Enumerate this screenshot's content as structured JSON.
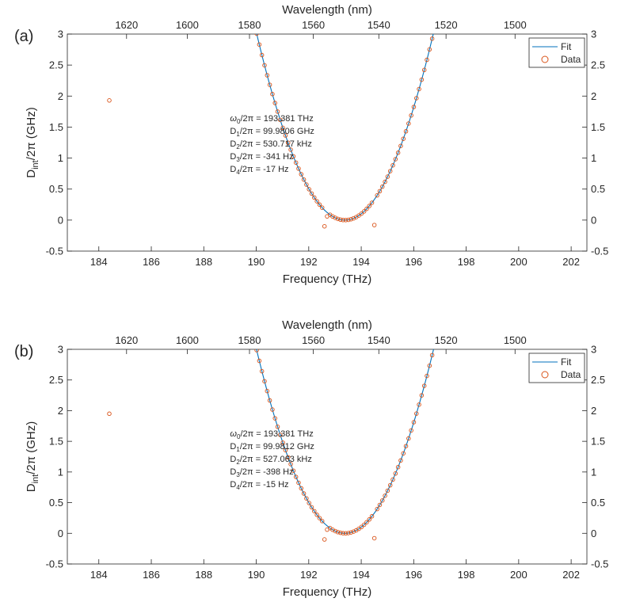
{
  "chart_data": [
    {
      "panel_label": "(a)",
      "type": "scatter",
      "xlabel": "Frequency (THz)",
      "ylabel_parts": {
        "base": "D",
        "sub": "int",
        "tail": "/2π (GHz)"
      },
      "top_xlabel": "Wavelength (nm)",
      "xlim": [
        182.8,
        202.6
      ],
      "ylim": [
        -0.5,
        3
      ],
      "x_ticks": [
        184,
        186,
        188,
        190,
        192,
        194,
        196,
        198,
        200,
        202
      ],
      "y_ticks": [
        -0.5,
        0,
        0.5,
        1,
        1.5,
        2,
        2.5,
        3
      ],
      "top_ticks": [
        1620,
        1600,
        1580,
        1560,
        1540,
        1520,
        1500
      ],
      "legend": {
        "position": "top-right",
        "entries": [
          {
            "label": "Fit",
            "marker": "line",
            "color": "#0072BD"
          },
          {
            "label": "Data",
            "marker": "circle",
            "color": "#D95319"
          }
        ]
      },
      "fit": {
        "name": "Fit",
        "center": 193.381,
        "coeffs": [
          0.530717,
          -0.000341,
          -1.7e-05
        ]
      },
      "data": {
        "name": "Data",
        "x_start": 182.93,
        "x_end": 202.45,
        "x_step": 0.0998,
        "outliers": [
          {
            "x": 184.4,
            "y": 1.93
          },
          {
            "x": 192.6,
            "y": -0.1
          },
          {
            "x": 194.5,
            "y": -0.08
          },
          {
            "x": 192.7,
            "y": 0.06
          }
        ]
      },
      "annotation": [
        {
          "base": "ω",
          "sub": "0",
          "rest": "/2π = 193.381 THz"
        },
        {
          "base": "D",
          "sub": "1",
          "rest": "/2π = 99.9806 GHz"
        },
        {
          "base": "D",
          "sub": "2",
          "rest": "/2π = 530.717 kHz"
        },
        {
          "base": "D",
          "sub": "3",
          "rest": "/2π = -341 Hz"
        },
        {
          "base": "D",
          "sub": "4",
          "rest": "/2π = -17 Hz"
        }
      ],
      "colors": {
        "fit": "#0072BD",
        "data": "#D95319"
      }
    },
    {
      "panel_label": "(b)",
      "type": "scatter",
      "xlabel": "Frequency (THz)",
      "ylabel_parts": {
        "base": "D",
        "sub": "int",
        "tail": "/2π (GHz)"
      },
      "top_xlabel": "Wavelength (nm)",
      "xlim": [
        182.8,
        202.6
      ],
      "ylim": [
        -0.5,
        3
      ],
      "x_ticks": [
        184,
        186,
        188,
        190,
        192,
        194,
        196,
        198,
        200,
        202
      ],
      "y_ticks": [
        -0.5,
        0,
        0.5,
        1,
        1.5,
        2,
        2.5,
        3
      ],
      "top_ticks": [
        1620,
        1600,
        1580,
        1560,
        1540,
        1520,
        1500
      ],
      "legend": {
        "position": "top-right",
        "entries": [
          {
            "label": "Fit",
            "marker": "line",
            "color": "#0072BD"
          },
          {
            "label": "Data",
            "marker": "circle",
            "color": "#D95319"
          }
        ]
      },
      "fit": {
        "name": "Fit",
        "center": 193.381,
        "coeffs": [
          0.527063,
          -0.000398,
          -1.5e-05
        ]
      },
      "data": {
        "name": "Data",
        "x_start": 182.93,
        "x_end": 202.45,
        "x_step": 0.0998,
        "outliers": [
          {
            "x": 184.4,
            "y": 1.95
          },
          {
            "x": 192.6,
            "y": -0.1
          },
          {
            "x": 194.5,
            "y": -0.08
          },
          {
            "x": 192.7,
            "y": 0.06
          }
        ]
      },
      "annotation": [
        {
          "base": "ω",
          "sub": "0",
          "rest": "/2π = 193.381 THz"
        },
        {
          "base": "D",
          "sub": "1",
          "rest": "/2π = 99.9812 GHz"
        },
        {
          "base": "D",
          "sub": "2",
          "rest": "/2π = 527.063 kHz"
        },
        {
          "base": "D",
          "sub": "3",
          "rest": "/2π = -398 Hz"
        },
        {
          "base": "D",
          "sub": "4",
          "rest": "/2π = -15 Hz"
        }
      ],
      "colors": {
        "fit": "#0072BD",
        "data": "#D95319"
      }
    }
  ]
}
